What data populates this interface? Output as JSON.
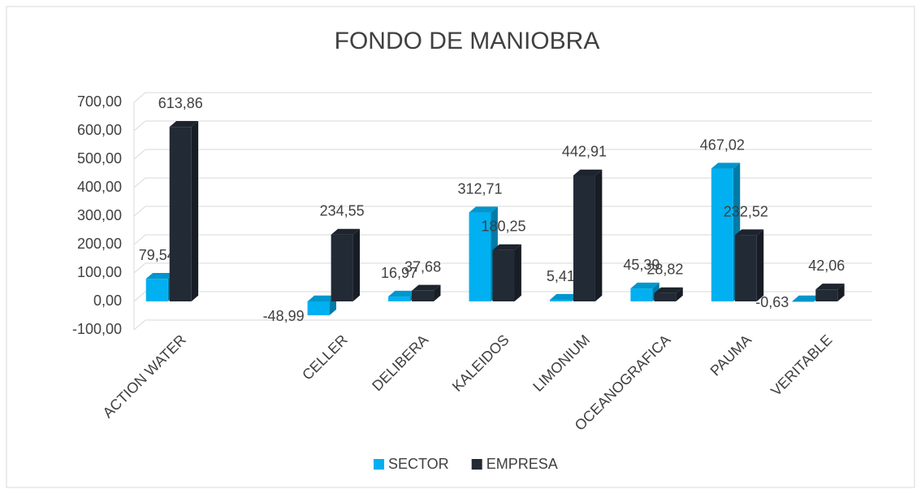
{
  "chart_data": {
    "type": "bar3d",
    "title": "FONDO DE MANIOBRA",
    "categories": [
      "ACTION WATER",
      null,
      "CELLER",
      "DELIBERA",
      "KALEIDOS",
      "LIMONIUM",
      "OCEANOGRAFICA",
      "PAUMA",
      "VERITABLE"
    ],
    "series": [
      {
        "name": "SECTOR",
        "color": "#00b0f0",
        "values": [
          79.54,
          null,
          -48.99,
          16.97,
          312.71,
          5.41,
          45.39,
          467.02,
          -0.63
        ],
        "value_labels": [
          "79,54",
          null,
          "-48,99",
          "16,97",
          "312,71",
          "5,41",
          "45,39",
          "467,02",
          "-0,63"
        ]
      },
      {
        "name": "EMPRESA",
        "color": "#222a35",
        "values": [
          613.86,
          null,
          234.55,
          37.68,
          180.25,
          442.91,
          28.82,
          232.52,
          42.06
        ],
        "value_labels": [
          "613,86",
          null,
          "234,55",
          "37,68",
          "180,25",
          "442,91",
          "28,82",
          "232,52",
          "42,06"
        ]
      }
    ],
    "ylim": [
      -100,
      700
    ],
    "yticks": [
      {
        "value": -100,
        "label": "-100,00"
      },
      {
        "value": 0,
        "label": "0,00"
      },
      {
        "value": 100,
        "label": "100,00"
      },
      {
        "value": 200,
        "label": "200,00"
      },
      {
        "value": 300,
        "label": "300,00"
      },
      {
        "value": 400,
        "label": "400,00"
      },
      {
        "value": 500,
        "label": "500,00"
      },
      {
        "value": 600,
        "label": "600,00"
      },
      {
        "value": 700,
        "label": "700,00"
      }
    ],
    "grid": true,
    "legend": "bottom"
  }
}
